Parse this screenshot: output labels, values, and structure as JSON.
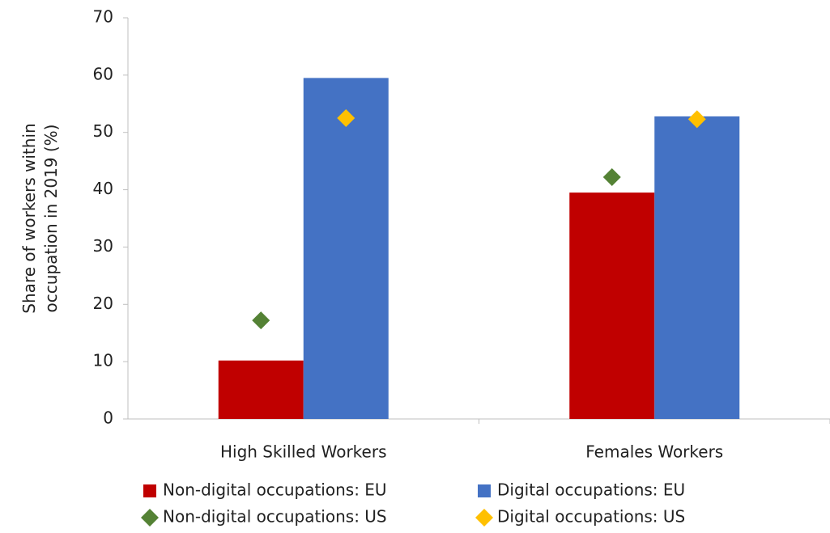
{
  "chart_data": {
    "type": "bar",
    "ylabel": "Share of workers within occupation in 2019 (%)",
    "categories": [
      "High Skilled Workers",
      "Females Workers"
    ],
    "series": [
      {
        "name": "Non-digital occupations: EU",
        "color": "#c00000",
        "type": "bar",
        "values": [
          10.2,
          39.5
        ]
      },
      {
        "name": "Digital occupations: EU",
        "color": "#4472c4",
        "type": "bar",
        "values": [
          59.5,
          52.8
        ]
      },
      {
        "name": "Non-digital occupations: US",
        "color": "#548235",
        "type": "diamond",
        "values": [
          17.2,
          42.2
        ]
      },
      {
        "name": "Digital occupations: US",
        "color": "#ffc000",
        "type": "diamond",
        "values": [
          52.5,
          52.3
        ]
      }
    ],
    "ylim": [
      0,
      70
    ],
    "yticks": [
      0,
      10,
      20,
      30,
      40,
      50,
      60,
      70
    ],
    "grid": false
  }
}
